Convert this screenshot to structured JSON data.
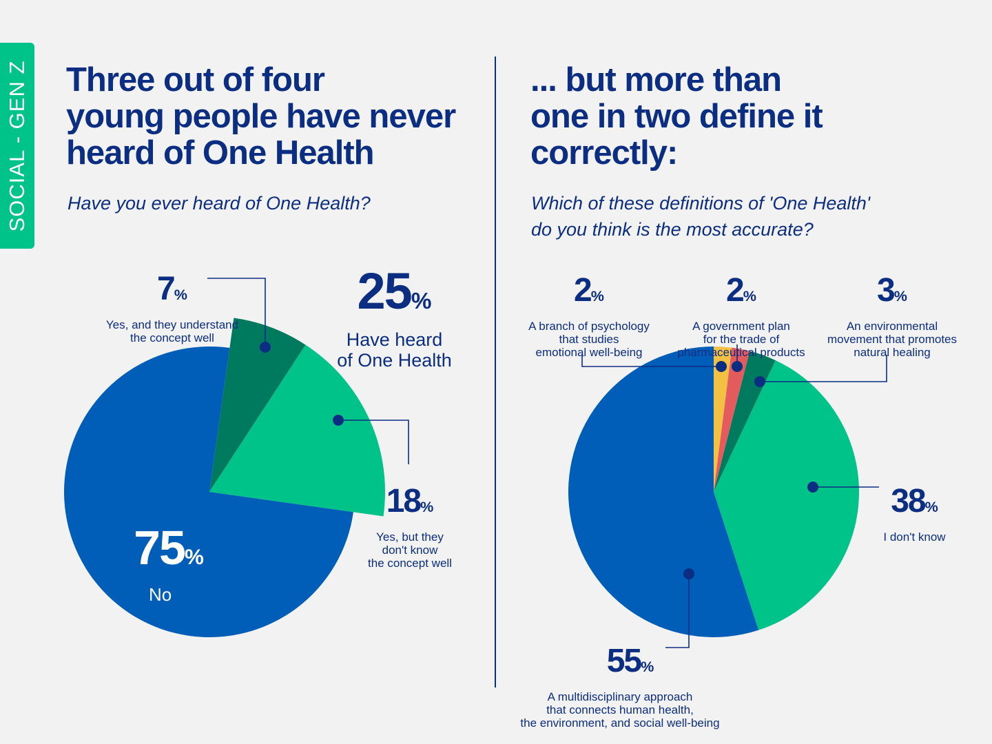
{
  "side_tab": "SOCIAL - GEN Z",
  "left": {
    "title": "Three out of four\nyoung people have never\nheard of One Health",
    "question": "Have you ever heard of One Health?",
    "group_label": {
      "value": "25",
      "unit": "%",
      "text": "Have heard\nof One Health"
    }
  },
  "right": {
    "title": "... but more than\none in two define it\ncorrectly:",
    "question": "Which of these definitions of 'One Health'\ndo you think is the most accurate?"
  },
  "colors": {
    "navy": "#0b2d82",
    "blue": "#005eb8",
    "dark_green": "#007a5e",
    "green": "#00c389",
    "yellow": "#f2c144",
    "red": "#e45b5e",
    "background": "#f2f2f2"
  },
  "chart_data": [
    {
      "type": "pie",
      "question": "Have you ever heard of One Health?",
      "exploded_group": "Have heard of One Health (25%)",
      "slices": [
        {
          "value": 7,
          "unit": "%",
          "label": "Yes, and they understand\nthe concept well",
          "color": "#007a5e"
        },
        {
          "value": 18,
          "unit": "%",
          "label": "Yes, but they\ndon't know\nthe concept well",
          "color": "#00c389"
        },
        {
          "value": 75,
          "unit": "%",
          "label": "No",
          "color": "#005eb8"
        }
      ]
    },
    {
      "type": "pie",
      "question": "Which of these definitions of 'One Health' do you think is the most accurate?",
      "slices": [
        {
          "value": 2,
          "unit": "%",
          "label": "A branch of psychology\nthat studies\nemotional well-being",
          "color": "#f2c144"
        },
        {
          "value": 2,
          "unit": "%",
          "label": "A government plan\nfor the trade of\npharmaceutical products",
          "color": "#e45b5e"
        },
        {
          "value": 3,
          "unit": "%",
          "label": "An environmental\nmovement that promotes\nnatural healing",
          "color": "#007a5e"
        },
        {
          "value": 38,
          "unit": "%",
          "label": "I don't know",
          "color": "#00c389"
        },
        {
          "value": 55,
          "unit": "%",
          "label": "A multidisciplinary approach\nthat connects human health,\nthe environment, and social well-being",
          "color": "#005eb8"
        }
      ]
    }
  ]
}
